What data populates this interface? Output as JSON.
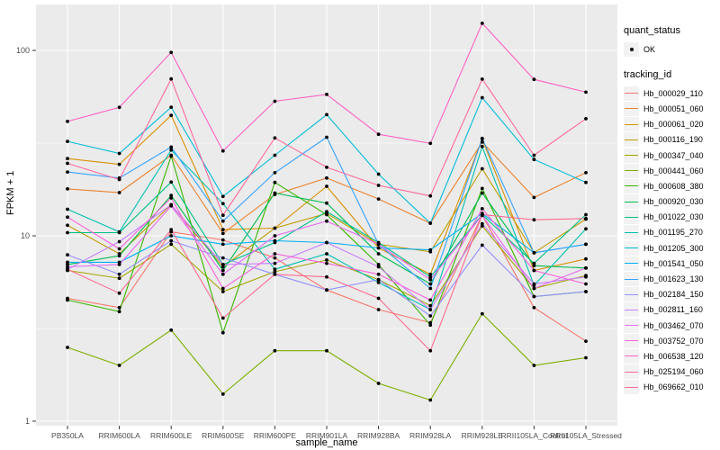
{
  "figure": {
    "background": "#FFFFFF",
    "panel_background": "#EBEBEB",
    "gridline_color": "#FFFFFF",
    "tick_color": "#333333",
    "tick_label_color": "#4D4D4D",
    "point_color": "#000000"
  },
  "axes": {
    "x": {
      "title": "sample_name",
      "tick_labels": [
        "PB350LA",
        "RRIM600LA",
        "RRIM600LE",
        "RRIM600SE",
        "RRIM600PE",
        "RRIM901LA",
        "RRIM928BA",
        "RRIM928LA",
        "RRIM928LE",
        "RRII105LA_Control",
        "RRII105LA_Stressed"
      ]
    },
    "y": {
      "title": "FPKM + 1",
      "scale": "log10",
      "tick_labels": [
        "1",
        "10",
        "100"
      ],
      "tick_values": [
        1,
        10,
        100
      ],
      "minor_tick_values": [
        3.1623,
        31.623
      ]
    }
  },
  "legend": {
    "position": "right",
    "quant_status": {
      "title": "quant_status",
      "items": [
        {
          "label": "OK",
          "symbol": "black-point"
        }
      ]
    },
    "tracking_id": {
      "title": "tracking_id",
      "items_note": "one item per series in chart_data.series, same label and color"
    }
  },
  "chart_data": {
    "type": "line",
    "title": "",
    "xlabel": "sample_name",
    "ylabel": "FPKM + 1",
    "y_scale": "log10",
    "ylim": [
      1,
      177
    ],
    "grid": true,
    "legend_position": "right",
    "point_marker": {
      "shape": "circle",
      "color": "#000000"
    },
    "categories": [
      "PB350LA",
      "RRIM600LA",
      "RRIM600LE",
      "RRIM600SE",
      "RRIM600PE",
      "RRIM901LA",
      "RRIM928BA",
      "RRIM928LA",
      "RRIM928LE",
      "RRII105LA_Control",
      "RRII105LA_Stressed"
    ],
    "series": [
      {
        "name": "Hb_000029_110",
        "color": "#F8766D",
        "values": [
          4.6,
          4.1,
          10.5,
          9.5,
          7.6,
          5.1,
          4.0,
          3.4,
          12.9,
          4.1,
          2.7
        ]
      },
      {
        "name": "Hb_000051_060",
        "color": "#EA8331",
        "values": [
          17.9,
          17.1,
          27.2,
          10.3,
          16.7,
          20.5,
          15.8,
          11.7,
          32.0,
          16.1,
          21.9
        ]
      },
      {
        "name": "Hb_000061_020",
        "color": "#D89000",
        "values": [
          26.1,
          24.3,
          44.6,
          10.8,
          11.0,
          18.5,
          8.6,
          6.2,
          33.3,
          6.5,
          7.5
        ]
      },
      {
        "name": "Hb_000116_190",
        "color": "#C09B00",
        "values": [
          11.4,
          8.0,
          14.7,
          6.8,
          11.0,
          13.2,
          9.0,
          8.2,
          23.0,
          8.1,
          12.3
        ]
      },
      {
        "name": "Hb_000347_040",
        "color": "#A3A500",
        "values": [
          6.5,
          5.9,
          9.0,
          5.0,
          6.4,
          7.4,
          5.8,
          4.2,
          11.3,
          5.2,
          6.1
        ]
      },
      {
        "name": "Hb_000441_060",
        "color": "#7CAE00",
        "values": [
          2.5,
          2.0,
          3.1,
          1.4,
          2.4,
          2.4,
          1.6,
          1.3,
          3.8,
          2.0,
          2.2
        ]
      },
      {
        "name": "Hb_000608_380",
        "color": "#39B600",
        "values": [
          4.5,
          3.9,
          26.9,
          3.0,
          19.4,
          13.0,
          7.0,
          3.3,
          18.0,
          4.7,
          5.0
        ]
      },
      {
        "name": "Hb_000920_030",
        "color": "#00BB4E",
        "values": [
          7.0,
          7.8,
          16.5,
          6.5,
          17.0,
          15.0,
          8.0,
          5.5,
          17.0,
          6.9,
          6.7
        ]
      },
      {
        "name": "Hb_001022_030",
        "color": "#00C087",
        "values": [
          10.4,
          10.4,
          19.5,
          7.0,
          9.2,
          13.5,
          9.2,
          6.0,
          13.0,
          7.1,
          13.0
        ]
      },
      {
        "name": "Hb_001195_270",
        "color": "#00C0AF",
        "values": [
          13.9,
          10.5,
          29.0,
          14.9,
          6.6,
          8.0,
          5.6,
          4.0,
          30.3,
          5.4,
          10.9
        ]
      },
      {
        "name": "Hb_001205_300",
        "color": "#00BCD8",
        "values": [
          32.3,
          27.8,
          49.4,
          16.3,
          27.2,
          45.0,
          21.5,
          11.7,
          55.6,
          25.8,
          19.4
        ]
      },
      {
        "name": "Hb_001541_050",
        "color": "#00B0F6",
        "values": [
          7.2,
          7.2,
          10.0,
          9.0,
          9.4,
          9.2,
          8.6,
          8.4,
          13.2,
          8.1,
          9.0
        ]
      },
      {
        "name": "Hb_001623_130",
        "color": "#35A2FF",
        "values": [
          22.1,
          20.5,
          30.1,
          12.0,
          21.9,
          34.0,
          9.0,
          5.2,
          33.5,
          8.1,
          9.0
        ]
      },
      {
        "name": "Hb_002184_150",
        "color": "#9590FF",
        "values": [
          7.9,
          6.2,
          9.4,
          7.6,
          6.2,
          5.1,
          5.8,
          3.7,
          8.9,
          4.7,
          5.0
        ]
      },
      {
        "name": "Hb_002811_160",
        "color": "#C77CFF",
        "values": [
          6.6,
          9.3,
          14.7,
          7.0,
          7.1,
          9.2,
          6.8,
          4.0,
          11.6,
          5.5,
          6.0
        ]
      },
      {
        "name": "Hb_003462_070",
        "color": "#E76BF3",
        "values": [
          6.8,
          7.0,
          14.5,
          6.2,
          10.0,
          12.0,
          9.0,
          5.8,
          12.9,
          5.2,
          6.7
        ]
      },
      {
        "name": "Hb_003752_070",
        "color": "#FA62DB",
        "values": [
          12.6,
          8.5,
          16.0,
          5.2,
          8.0,
          7.1,
          6.2,
          4.5,
          14.0,
          6.5,
          5.5
        ]
      },
      {
        "name": "Hb_006538_120",
        "color": "#FF61C2",
        "values": [
          41.4,
          49.3,
          97.5,
          28.7,
          53.2,
          57.9,
          35.3,
          31.5,
          140.0,
          69.8,
          59.5
        ]
      },
      {
        "name": "Hb_025194_060",
        "color": "#FF689E",
        "values": [
          24.6,
          20.1,
          70.2,
          12.9,
          33.7,
          23.4,
          18.7,
          16.4,
          70.0,
          27.2,
          42.8
        ]
      },
      {
        "name": "Hb_069662_010",
        "color": "#FF6C91",
        "values": [
          6.6,
          4.9,
          10.8,
          3.6,
          6.2,
          6.0,
          4.6,
          2.4,
          13.0,
          12.2,
          12.4
        ]
      }
    ]
  }
}
